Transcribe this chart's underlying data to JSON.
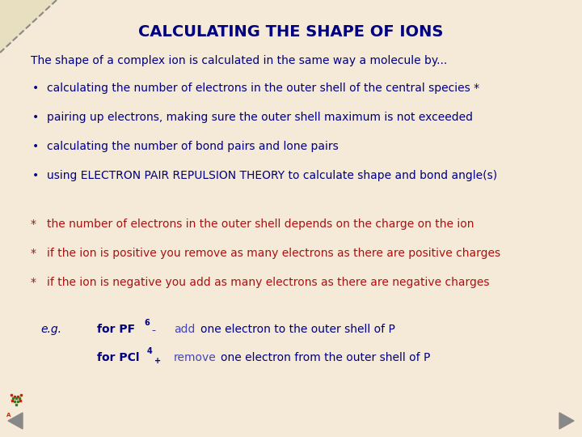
{
  "title": "CALCULATING THE SHAPE OF IONS",
  "title_color": "#000080",
  "bg_color": "#f5ead8",
  "dark_blue": "#000080",
  "red_color": "#aa1111",
  "blue_highlight": "#4444bb",
  "gray_arrow": "#888888",
  "intro_text": "The shape of a complex ion is calculated in the same way a molecule by...",
  "bullets": [
    "calculating the number of electrons in the outer shell of the central species *",
    "pairing up electrons, making sure the outer shell maximum is not exceeded",
    "calculating the number of bond pairs and lone pairs",
    "using ELECTRON PAIR REPULSION THEORY to calculate shape and bond angle(s)"
  ],
  "footnotes": [
    "the number of electrons in the outer shell depends on the charge on the ion",
    "if the ion is positive you remove as many electrons as there are positive charges",
    "if the ion is negative you add as many electrons as there are negative charges"
  ],
  "figsize": [
    7.2,
    5.4
  ],
  "dpi": 100
}
